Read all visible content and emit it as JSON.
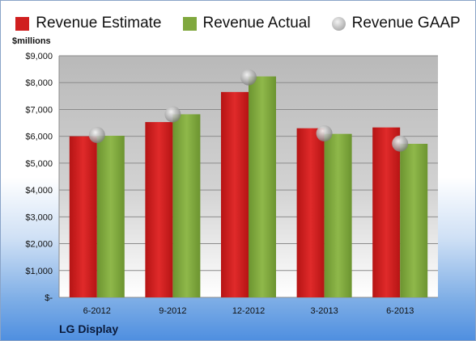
{
  "chart_data": {
    "type": "bar",
    "categories": [
      "6-2012",
      "9-2012",
      "12-2012",
      "3-2013",
      "6-2013"
    ],
    "series": [
      {
        "name": "Revenue Estimate",
        "values": [
          6000,
          6530,
          7650,
          6300,
          6330
        ],
        "color": "#d01f1f"
      },
      {
        "name": "Revenue Actual",
        "values": [
          6020,
          6820,
          8230,
          6090,
          5720
        ],
        "color": "#80a83e"
      },
      {
        "name": "Revenue GAAP",
        "values": [
          6050,
          6820,
          8200,
          6110,
          5730
        ],
        "color": "#b8b8b8"
      }
    ],
    "ylabel": "$millions",
    "ylim": [
      0,
      9000
    ],
    "yticks": [
      0,
      1000,
      2000,
      3000,
      4000,
      5000,
      6000,
      7000,
      8000,
      9000
    ],
    "ytick_labels": [
      "$-",
      "$1,000",
      "$2,000",
      "$3,000",
      "$4,000",
      "$5,000",
      "$6,000",
      "$7,000",
      "$8,000",
      "$9,000"
    ],
    "legend_position": "top",
    "grid": true
  },
  "company": "LG Display"
}
